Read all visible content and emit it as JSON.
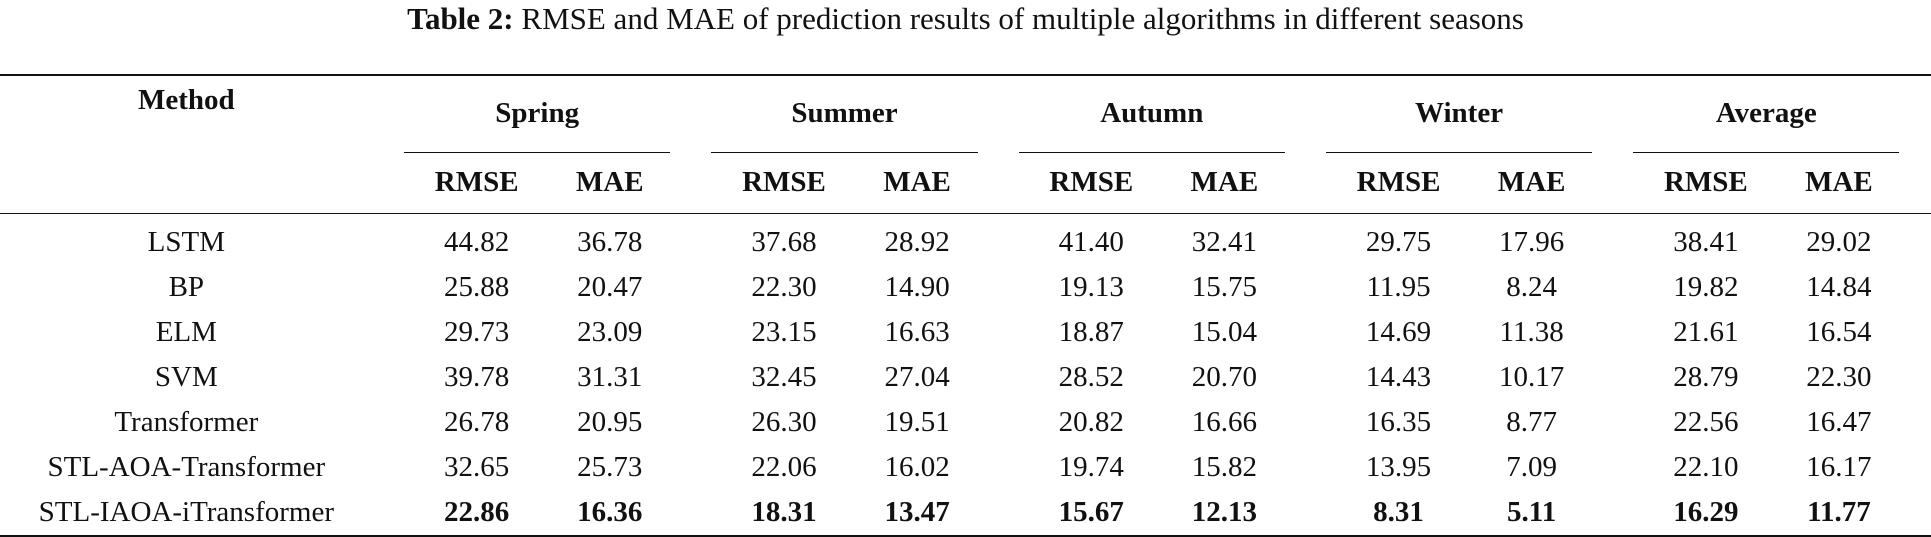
{
  "caption": {
    "label": "Table 2:",
    "text": "RMSE and MAE of prediction results of multiple algorithms in different seasons"
  },
  "header": {
    "method": "Method",
    "groups": [
      "Spring",
      "Summer",
      "Autumn",
      "Winter",
      "Average"
    ],
    "metrics": [
      "RMSE",
      "MAE"
    ]
  },
  "rows": [
    {
      "method": "LSTM",
      "values": [
        "44.82",
        "36.78",
        "37.68",
        "28.92",
        "41.40",
        "32.41",
        "29.75",
        "17.96",
        "38.41",
        "29.02"
      ],
      "bold": false
    },
    {
      "method": "BP",
      "values": [
        "25.88",
        "20.47",
        "22.30",
        "14.90",
        "19.13",
        "15.75",
        "11.95",
        "8.24",
        "19.82",
        "14.84"
      ],
      "bold": false
    },
    {
      "method": "ELM",
      "values": [
        "29.73",
        "23.09",
        "23.15",
        "16.63",
        "18.87",
        "15.04",
        "14.69",
        "11.38",
        "21.61",
        "16.54"
      ],
      "bold": false
    },
    {
      "method": "SVM",
      "values": [
        "39.78",
        "31.31",
        "32.45",
        "27.04",
        "28.52",
        "20.70",
        "14.43",
        "10.17",
        "28.79",
        "22.30"
      ],
      "bold": false
    },
    {
      "method": "Transformer",
      "values": [
        "26.78",
        "20.95",
        "26.30",
        "19.51",
        "20.82",
        "16.66",
        "16.35",
        "8.77",
        "22.56",
        "16.47"
      ],
      "bold": false
    },
    {
      "method": "STL-AOA-Transformer",
      "values": [
        "32.65",
        "25.73",
        "22.06",
        "16.02",
        "19.74",
        "15.82",
        "13.95",
        "7.09",
        "22.10",
        "16.17"
      ],
      "bold": false
    },
    {
      "method": "STL-IAOA-iTransformer",
      "values": [
        "22.86",
        "16.36",
        "18.31",
        "13.47",
        "15.67",
        "12.13",
        "8.31",
        "5.11",
        "16.29",
        "11.77"
      ],
      "bold": true
    }
  ]
}
